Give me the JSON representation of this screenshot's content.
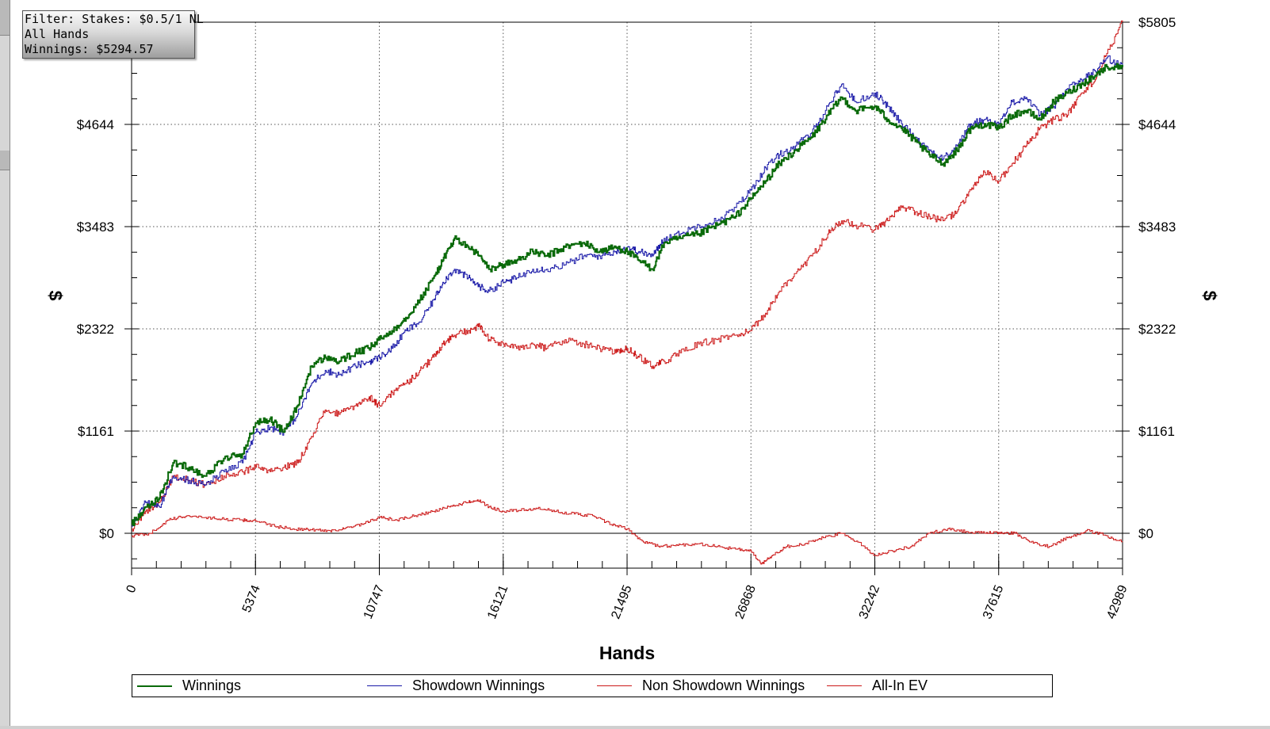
{
  "info": {
    "filter": "Filter: Stakes: $0.5/1 NL",
    "hands": "All Hands",
    "winnings": "Winnings: $5294.57"
  },
  "chart_data": {
    "type": "line",
    "xlabel": "Hands",
    "ylabel": "$",
    "xlim": [
      0,
      42989
    ],
    "ylim": [
      -200,
      5805
    ],
    "x_ticks": [
      0,
      5374,
      10747,
      16121,
      21495,
      26868,
      32242,
      37615,
      42989
    ],
    "x_tick_labels": [
      "0",
      "5374",
      "10747",
      "16121",
      "21495",
      "26868",
      "32242",
      "37615",
      "42989"
    ],
    "y_ticks": [
      0,
      1161,
      2322,
      3483,
      4644,
      5805
    ],
    "y_tick_labels": [
      "$0",
      "$1161",
      "$2322",
      "$3483",
      "$4644",
      "$5805"
    ],
    "grid": true,
    "legend_position": "bottom",
    "series": [
      {
        "name": "Winnings",
        "color": "#0a6a0a",
        "x": [
          0,
          600,
          1200,
          1800,
          2500,
          3200,
          4000,
          4800,
          5374,
          6000,
          6600,
          7200,
          7800,
          8400,
          9000,
          9700,
          10300,
          10747,
          11300,
          11900,
          12500,
          13100,
          13500,
          14000,
          14600,
          15100,
          15500,
          16121,
          16700,
          17400,
          18000,
          18800,
          19600,
          20300,
          21000,
          21495,
          22000,
          22600,
          23100,
          23800,
          24600,
          25400,
          26200,
          26868,
          27500,
          28100,
          28800,
          29500,
          30200,
          30800,
          31400,
          32242,
          32800,
          33400,
          34000,
          34600,
          35200,
          35800,
          36400,
          37000,
          37615,
          38200,
          38800,
          39400,
          40000,
          40600,
          41200,
          41800,
          42300,
          42989
        ],
        "values": [
          100,
          300,
          400,
          800,
          750,
          650,
          850,
          900,
          1250,
          1300,
          1150,
          1450,
          1900,
          2000,
          1950,
          2050,
          2100,
          2200,
          2300,
          2450,
          2650,
          2900,
          3100,
          3350,
          3250,
          3150,
          3000,
          3050,
          3100,
          3200,
          3150,
          3250,
          3300,
          3200,
          3250,
          3200,
          3100,
          3000,
          3300,
          3350,
          3400,
          3500,
          3600,
          3800,
          4000,
          4200,
          4350,
          4500,
          4750,
          4950,
          4800,
          4850,
          4700,
          4600,
          4450,
          4300,
          4200,
          4350,
          4600,
          4650,
          4600,
          4750,
          4800,
          4700,
          4900,
          5000,
          5100,
          5200,
          5300,
          5294.57
        ]
      },
      {
        "name": "Showdown Winnings",
        "color": "#1a1aa8",
        "x": [
          0,
          600,
          1200,
          1800,
          2500,
          3200,
          4000,
          4800,
          5374,
          6000,
          6600,
          7200,
          7800,
          8400,
          9000,
          9700,
          10300,
          10747,
          11300,
          11900,
          12500,
          13100,
          13500,
          14000,
          14600,
          15100,
          15500,
          16121,
          16700,
          17400,
          18000,
          18800,
          19600,
          20300,
          21000,
          21495,
          22000,
          22600,
          23100,
          23800,
          24600,
          25400,
          26200,
          26868,
          27500,
          28100,
          28800,
          29500,
          30200,
          30800,
          31400,
          32242,
          32800,
          33400,
          34000,
          34600,
          35200,
          35800,
          36400,
          37000,
          37615,
          38200,
          38800,
          39400,
          40000,
          40600,
          41200,
          41800,
          42300,
          42989
        ],
        "values": [
          80,
          350,
          300,
          650,
          600,
          550,
          700,
          800,
          1150,
          1200,
          1150,
          1350,
          1700,
          1850,
          1800,
          1900,
          1950,
          2000,
          2100,
          2300,
          2400,
          2650,
          2850,
          3000,
          2900,
          2800,
          2750,
          2850,
          2900,
          3000,
          3000,
          3050,
          3150,
          3150,
          3200,
          3250,
          3200,
          3150,
          3350,
          3400,
          3500,
          3550,
          3700,
          3900,
          4150,
          4300,
          4400,
          4550,
          4850,
          5100,
          4900,
          5000,
          4850,
          4650,
          4500,
          4350,
          4250,
          4400,
          4650,
          4700,
          4650,
          4900,
          4950,
          4750,
          4850,
          5050,
          5150,
          5250,
          5400,
          5300
        ]
      },
      {
        "name": "Non Showdown Winnings",
        "color": "#cc1a1a",
        "x": [
          0,
          800,
          1600,
          2400,
          3200,
          4000,
          4800,
          5374,
          6200,
          7000,
          7800,
          8600,
          9200,
          10000,
          10747,
          11500,
          12300,
          13100,
          13800,
          14500,
          15000,
          15500,
          16121,
          16800,
          17600,
          18400,
          19200,
          20000,
          20800,
          21495,
          22200,
          23000,
          23800,
          24600,
          25400,
          26200,
          26868,
          27300,
          27800,
          28400,
          29200,
          30000,
          30800,
          31500,
          32242,
          33000,
          33800,
          34600,
          35400,
          36200,
          37000,
          37615,
          38300,
          39000,
          39800,
          40600,
          41400,
          42200,
          42989
        ],
        "values": [
          -30,
          0,
          150,
          200,
          180,
          160,
          150,
          140,
          80,
          50,
          40,
          30,
          50,
          100,
          180,
          150,
          200,
          250,
          300,
          350,
          380,
          300,
          250,
          260,
          280,
          250,
          220,
          200,
          100,
          50,
          -100,
          -150,
          -130,
          -120,
          -150,
          -180,
          -200,
          -350,
          -250,
          -150,
          -120,
          -50,
          0,
          -100,
          -250,
          -200,
          -150,
          0,
          50,
          20,
          0,
          10,
          0,
          -100,
          -150,
          -50,
          30,
          -20,
          -100
        ]
      },
      {
        "name": "All-In EV",
        "color": "#cc1a1a",
        "x": [
          0,
          600,
          1200,
          1800,
          2500,
          3200,
          4000,
          4800,
          5374,
          6000,
          6600,
          7200,
          7800,
          8400,
          9000,
          9700,
          10300,
          10747,
          11300,
          11900,
          12500,
          13100,
          13500,
          14000,
          14600,
          15100,
          15500,
          16121,
          16700,
          17400,
          18000,
          18800,
          19600,
          20300,
          21000,
          21495,
          22000,
          22600,
          23100,
          23800,
          24600,
          25400,
          26200,
          26868,
          27500,
          28100,
          28800,
          29500,
          30200,
          30800,
          31400,
          32242,
          32800,
          33400,
          34000,
          34600,
          35200,
          35800,
          36400,
          37000,
          37615,
          38200,
          38800,
          39400,
          40000,
          40600,
          41200,
          41800,
          42300,
          42989
        ],
        "values": [
          50,
          250,
          350,
          650,
          600,
          550,
          650,
          700,
          750,
          700,
          750,
          800,
          1100,
          1400,
          1350,
          1450,
          1550,
          1450,
          1600,
          1700,
          1850,
          2000,
          2150,
          2250,
          2300,
          2350,
          2200,
          2150,
          2100,
          2150,
          2100,
          2200,
          2150,
          2100,
          2050,
          2100,
          2000,
          1900,
          1950,
          2050,
          2150,
          2200,
          2250,
          2300,
          2500,
          2750,
          2950,
          3150,
          3400,
          3550,
          3500,
          3450,
          3550,
          3700,
          3650,
          3600,
          3550,
          3650,
          3900,
          4100,
          4000,
          4200,
          4400,
          4600,
          4700,
          4750,
          5000,
          5150,
          5450,
          5805
        ]
      }
    ]
  }
}
